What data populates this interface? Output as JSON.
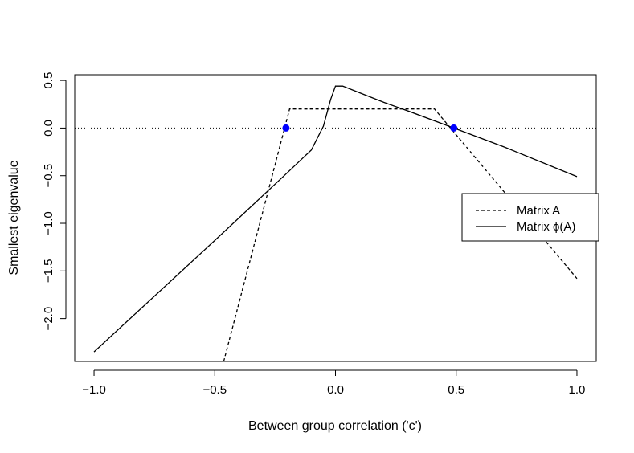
{
  "chart_data": {
    "type": "line",
    "title": "",
    "xlabel": "Between group correlation ('c')",
    "ylabel": "Smallest eigenvalue",
    "xlim": [
      -1.08,
      1.08
    ],
    "ylim": [
      -2.45,
      0.56
    ],
    "xticks": [
      -1.0,
      -0.5,
      0.0,
      0.5,
      1.0
    ],
    "xtick_labels": [
      "−1.0",
      "−0.5",
      "0.0",
      "0.5",
      "1.0"
    ],
    "yticks": [
      -2.0,
      -1.5,
      -1.0,
      -0.5,
      0.0,
      0.5
    ],
    "ytick_labels": [
      "−2.0",
      "−1.5",
      "−1.0",
      "−0.5",
      "0.0",
      "0.5"
    ],
    "grid": false,
    "legend_position": "right",
    "reference_line": {
      "y": 0.0,
      "style": "dotted"
    },
    "series": [
      {
        "name": "Matrix A",
        "style": "dashed",
        "color": "#000000",
        "x": [
          -0.463,
          -0.19,
          0.41,
          1.0
        ],
        "y": [
          -2.45,
          0.2,
          0.2,
          -1.58
        ]
      },
      {
        "name": "Matrix ϕ(A)",
        "style": "solid",
        "color": "#000000",
        "x": [
          -1.0,
          -0.5,
          -0.2,
          -0.1,
          -0.05,
          -0.02,
          0.0,
          0.03,
          0.1,
          0.2,
          0.3,
          0.49,
          0.7,
          1.0
        ],
        "y": [
          -2.35,
          -1.18,
          -0.47,
          -0.23,
          0.02,
          0.3,
          0.44,
          0.44,
          0.37,
          0.27,
          0.18,
          0.0,
          -0.2,
          -0.51
        ]
      }
    ],
    "highlighted_points": {
      "color": "#0000ff",
      "x": [
        -0.205,
        0.49
      ],
      "y": [
        0.0,
        0.0
      ]
    }
  }
}
